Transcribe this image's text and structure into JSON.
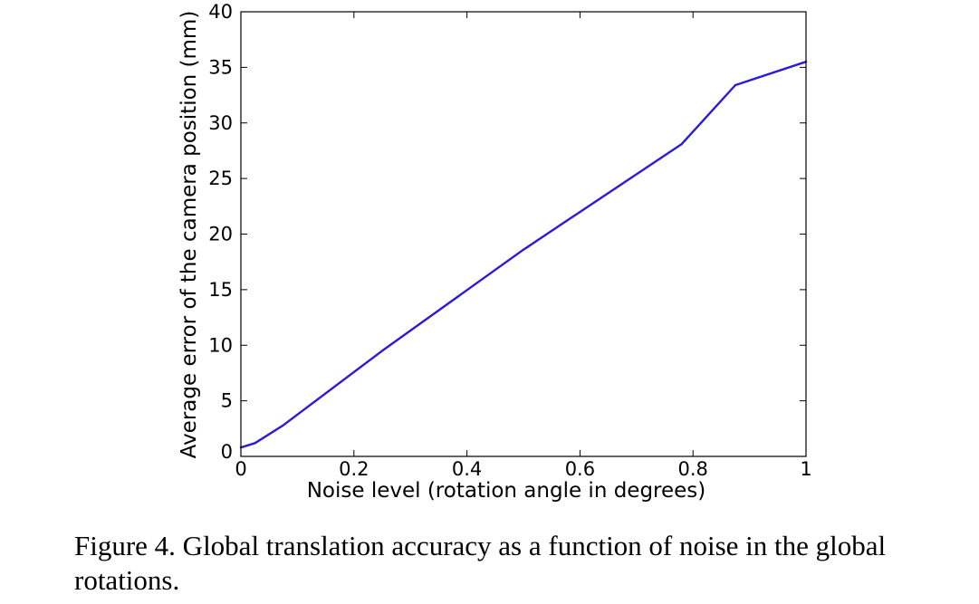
{
  "chart_data": {
    "type": "line",
    "xlabel": "Noise level (rotation angle in degrees)",
    "ylabel": "Average error of the camera position (mm)",
    "xlim": [
      0,
      1
    ],
    "ylim": [
      0,
      40
    ],
    "xticks": [
      0,
      0.2,
      0.4,
      0.6,
      0.8,
      1
    ],
    "xtick_labels": [
      "0",
      "0.2",
      "0.4",
      "0.6",
      "0.8",
      "1"
    ],
    "yticks": [
      0,
      5,
      10,
      15,
      20,
      25,
      30,
      35,
      40
    ],
    "ytick_labels": [
      "0",
      "5",
      "10",
      "15",
      "20",
      "25",
      "30",
      "35",
      "40"
    ],
    "grid": false,
    "series": [
      {
        "color": "#2b1ad6",
        "x": [
          0,
          0.025,
          0.075,
          0.25,
          0.5,
          0.78,
          0.875,
          1.0
        ],
        "y": [
          0.8,
          1.2,
          2.8,
          9.5,
          18.6,
          28.1,
          33.4,
          35.5
        ]
      }
    ]
  },
  "caption": "Figure 4. Global translation accuracy as a function of noise in the global rotations."
}
